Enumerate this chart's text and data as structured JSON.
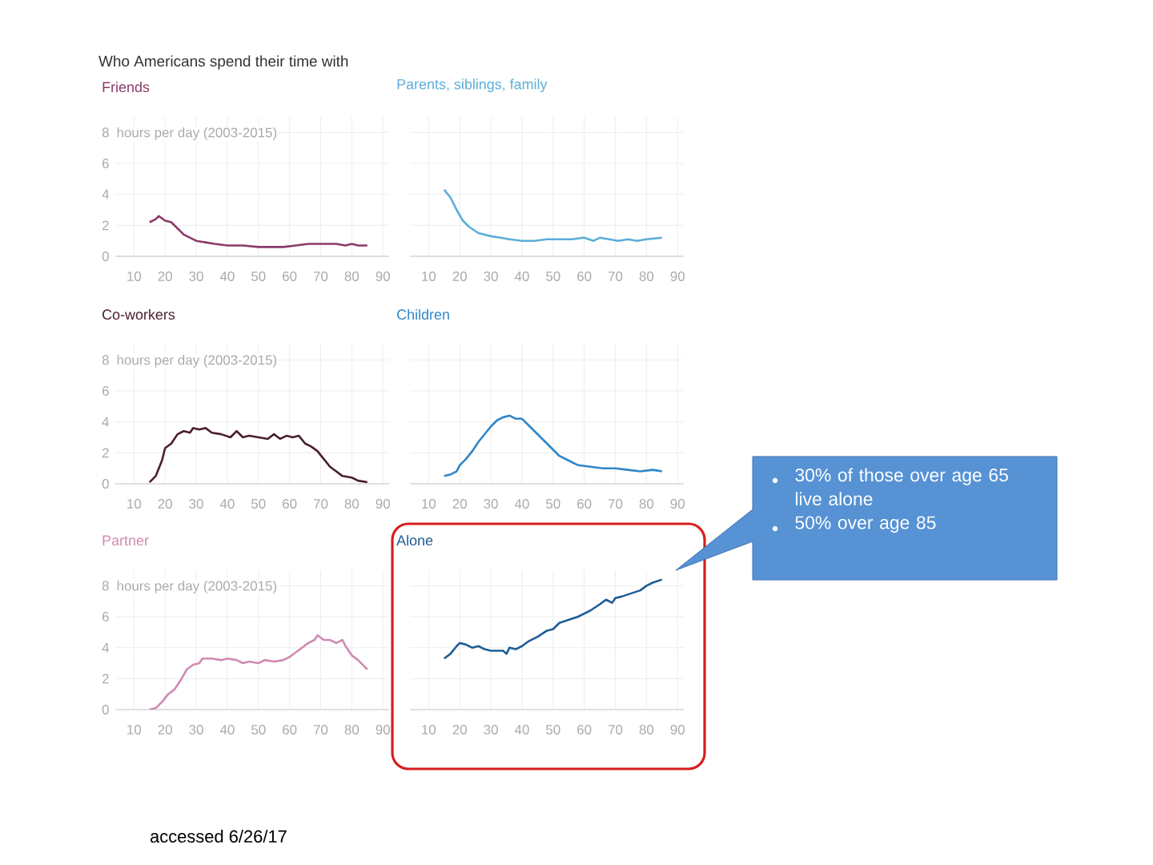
{
  "chart_data": [
    {
      "type": "line",
      "title": "Who Americans spend their time with",
      "subtitle": "Friends",
      "ylabel": "hours per day (2003-2015)",
      "xlim": [
        4,
        92
      ],
      "ylim": [
        0,
        9
      ],
      "xticks": [
        10,
        20,
        30,
        40,
        50,
        60,
        70,
        80,
        90
      ],
      "yticks": [
        0,
        2,
        4,
        6,
        8
      ],
      "grid": true,
      "annotations": [
        "accessed 6/26/17"
      ],
      "series": [
        {
          "color": "#8b3a6b",
          "x": [
            15,
            17,
            18,
            20,
            22,
            24,
            26,
            28,
            30,
            33,
            36,
            40,
            45,
            50,
            55,
            58,
            62,
            66,
            70,
            75,
            78,
            80,
            82,
            85
          ],
          "values": [
            2.2,
            2.4,
            2.6,
            2.3,
            2.2,
            1.8,
            1.4,
            1.2,
            1.0,
            0.9,
            0.8,
            0.7,
            0.7,
            0.6,
            0.6,
            0.6,
            0.7,
            0.8,
            0.8,
            0.8,
            0.7,
            0.8,
            0.7,
            0.7
          ]
        }
      ]
    },
    {
      "type": "line",
      "subtitle": "Parents, siblings, family",
      "xlim": [
        4,
        92
      ],
      "ylim": [
        0,
        9
      ],
      "xticks": [
        10,
        20,
        30,
        40,
        50,
        60,
        70,
        80,
        90
      ],
      "yticks": [
        0,
        2,
        4,
        6,
        8
      ],
      "grid": true,
      "tick_labels": "x",
      "series": [
        {
          "color": "#5aaed8",
          "x": [
            15,
            17,
            19,
            21,
            23,
            26,
            28,
            30,
            33,
            36,
            40,
            44,
            48,
            52,
            56,
            60,
            63,
            65,
            68,
            71,
            74,
            77,
            80,
            85
          ],
          "values": [
            4.3,
            3.8,
            3.0,
            2.3,
            1.9,
            1.5,
            1.4,
            1.3,
            1.2,
            1.1,
            1.0,
            1.0,
            1.1,
            1.1,
            1.1,
            1.2,
            1.0,
            1.2,
            1.1,
            1.0,
            1.1,
            1.0,
            1.1,
            1.2
          ]
        }
      ]
    },
    {
      "type": "line",
      "subtitle": "Co-workers",
      "ylabel": "hours per day (2003-2015)",
      "xlim": [
        4,
        92
      ],
      "ylim": [
        0,
        9
      ],
      "xticks": [
        10,
        20,
        30,
        40,
        50,
        60,
        70,
        80,
        90
      ],
      "yticks": [
        0,
        2,
        4,
        6,
        8
      ],
      "grid": true,
      "series": [
        {
          "color": "#4a1e2e",
          "x": [
            15,
            17,
            19,
            20,
            22,
            24,
            26,
            28,
            29,
            31,
            33,
            35,
            38,
            41,
            43,
            45,
            47,
            50,
            53,
            55,
            57,
            59,
            61,
            63,
            65,
            67,
            69,
            71,
            73,
            75,
            77,
            80,
            82,
            85
          ],
          "values": [
            0.1,
            0.5,
            1.5,
            2.3,
            2.6,
            3.2,
            3.4,
            3.3,
            3.6,
            3.5,
            3.6,
            3.3,
            3.2,
            3.0,
            3.4,
            3.0,
            3.1,
            3.0,
            2.9,
            3.2,
            2.9,
            3.1,
            3.0,
            3.1,
            2.6,
            2.4,
            2.1,
            1.6,
            1.1,
            0.8,
            0.5,
            0.4,
            0.2,
            0.1
          ]
        }
      ]
    },
    {
      "type": "line",
      "subtitle": "Children",
      "xlim": [
        4,
        92
      ],
      "ylim": [
        0,
        9
      ],
      "xticks": [
        10,
        20,
        30,
        40,
        50,
        60,
        70,
        80,
        90
      ],
      "yticks": [
        0,
        2,
        4,
        6,
        8
      ],
      "grid": true,
      "tick_labels": "x",
      "series": [
        {
          "color": "#2f86c8",
          "x": [
            15,
            17,
            19,
            20,
            22,
            24,
            26,
            28,
            30,
            32,
            34,
            36,
            38,
            40,
            42,
            44,
            46,
            48,
            50,
            52,
            55,
            58,
            62,
            66,
            70,
            74,
            78,
            82,
            85
          ],
          "values": [
            0.5,
            0.6,
            0.8,
            1.2,
            1.6,
            2.1,
            2.7,
            3.2,
            3.7,
            4.1,
            4.3,
            4.4,
            4.2,
            4.2,
            3.8,
            3.4,
            3.0,
            2.6,
            2.2,
            1.8,
            1.5,
            1.2,
            1.1,
            1.0,
            1.0,
            0.9,
            0.8,
            0.9,
            0.8
          ]
        }
      ]
    },
    {
      "type": "line",
      "subtitle": "Partner",
      "ylabel": "hours per day (2003-2015)",
      "xlim": [
        4,
        92
      ],
      "ylim": [
        0,
        9
      ],
      "xticks": [
        10,
        20,
        30,
        40,
        50,
        60,
        70,
        80,
        90
      ],
      "yticks": [
        0,
        2,
        4,
        6,
        8
      ],
      "grid": true,
      "series": [
        {
          "color": "#d08ab0",
          "x": [
            15,
            17,
            19,
            21,
            23,
            25,
            27,
            29,
            31,
            32,
            35,
            38,
            40,
            43,
            45,
            47,
            50,
            52,
            55,
            58,
            60,
            62,
            64,
            66,
            68,
            69,
            71,
            73,
            75,
            77,
            78,
            80,
            82,
            85
          ],
          "values": [
            0.0,
            0.1,
            0.5,
            1.0,
            1.3,
            1.9,
            2.6,
            2.9,
            3.0,
            3.3,
            3.3,
            3.2,
            3.3,
            3.2,
            3.0,
            3.1,
            3.0,
            3.2,
            3.1,
            3.2,
            3.4,
            3.7,
            4.0,
            4.3,
            4.5,
            4.8,
            4.5,
            4.5,
            4.3,
            4.5,
            4.1,
            3.5,
            3.2,
            2.6
          ]
        }
      ]
    },
    {
      "type": "line",
      "subtitle": "Alone",
      "xlim": [
        4,
        92
      ],
      "ylim": [
        0,
        9
      ],
      "xticks": [
        10,
        20,
        30,
        40,
        50,
        60,
        70,
        80,
        90
      ],
      "yticks": [
        0,
        2,
        4,
        6,
        8
      ],
      "grid": true,
      "tick_labels": "x",
      "annotations": [
        "30% of those over age 65 live alone",
        "50% over age 85"
      ],
      "series": [
        {
          "color": "#1f5d96",
          "x": [
            15,
            17,
            19,
            20,
            22,
            24,
            26,
            28,
            30,
            32,
            34,
            35,
            36,
            38,
            40,
            42,
            45,
            48,
            50,
            52,
            55,
            58,
            60,
            62,
            65,
            67,
            69,
            70,
            72,
            75,
            78,
            80,
            82,
            85
          ],
          "values": [
            3.3,
            3.6,
            4.1,
            4.3,
            4.2,
            4.0,
            4.1,
            3.9,
            3.8,
            3.8,
            3.8,
            3.6,
            4.0,
            3.9,
            4.1,
            4.4,
            4.7,
            5.1,
            5.2,
            5.6,
            5.8,
            6.0,
            6.2,
            6.4,
            6.8,
            7.1,
            6.9,
            7.2,
            7.3,
            7.5,
            7.7,
            8.0,
            8.2,
            8.4
          ]
        }
      ]
    }
  ]
}
